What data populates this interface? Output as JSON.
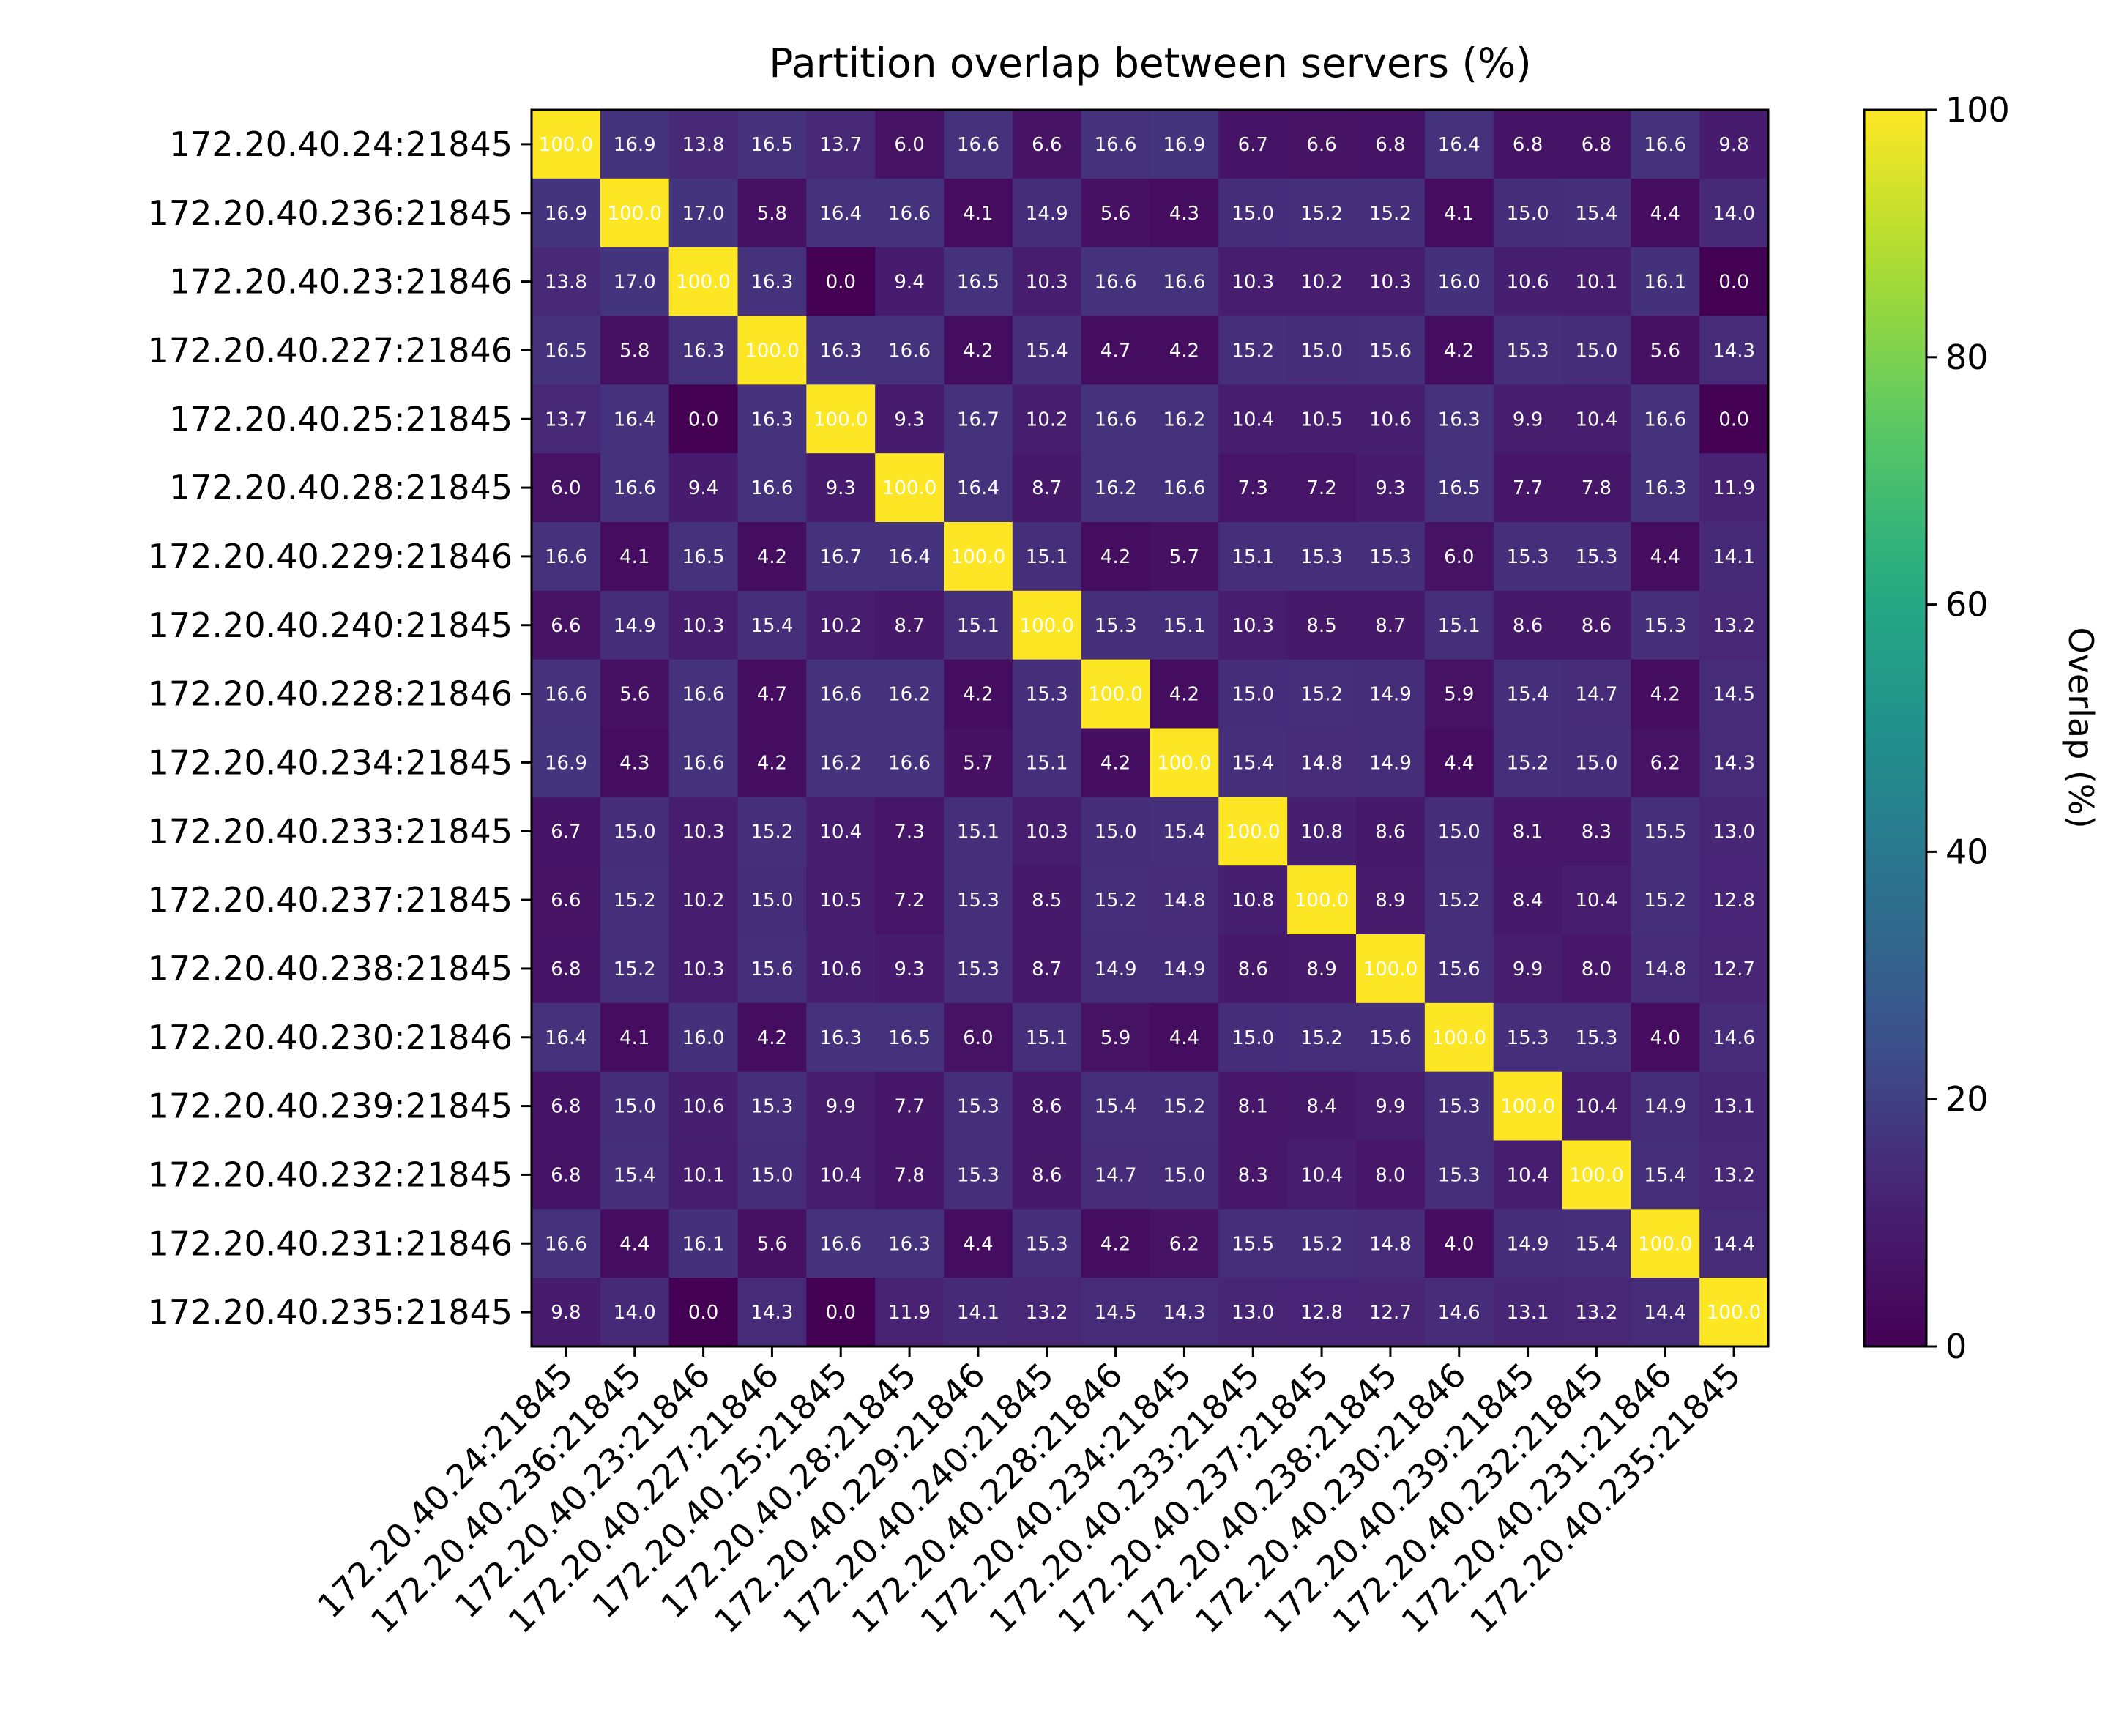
{
  "chart_data": {
    "type": "heatmap",
    "title": "Partition overlap between servers (%)",
    "xlabel": "",
    "ylabel": "",
    "categories": [
      "172.20.40.24:21845",
      "172.20.40.236:21845",
      "172.20.40.23:21846",
      "172.20.40.227:21846",
      "172.20.40.25:21845",
      "172.20.40.28:21845",
      "172.20.40.229:21846",
      "172.20.40.240:21845",
      "172.20.40.228:21846",
      "172.20.40.234:21845",
      "172.20.40.233:21845",
      "172.20.40.237:21845",
      "172.20.40.238:21845",
      "172.20.40.230:21846",
      "172.20.40.239:21845",
      "172.20.40.232:21845",
      "172.20.40.231:21846",
      "172.20.40.235:21845"
    ],
    "values": [
      [
        100.0,
        16.9,
        13.8,
        16.5,
        13.7,
        6.0,
        16.6,
        6.6,
        16.6,
        16.9,
        6.7,
        6.6,
        6.8,
        16.4,
        6.8,
        6.8,
        16.6,
        9.8
      ],
      [
        16.9,
        100.0,
        17.0,
        5.8,
        16.4,
        16.6,
        4.1,
        14.9,
        5.6,
        4.3,
        15.0,
        15.2,
        15.2,
        4.1,
        15.0,
        15.4,
        4.4,
        14.0
      ],
      [
        13.8,
        17.0,
        100.0,
        16.3,
        0.0,
        9.4,
        16.5,
        10.3,
        16.6,
        16.6,
        10.3,
        10.2,
        10.3,
        16.0,
        10.6,
        10.1,
        16.1,
        0.0
      ],
      [
        16.5,
        5.8,
        16.3,
        100.0,
        16.3,
        16.6,
        4.2,
        15.4,
        4.7,
        4.2,
        15.2,
        15.0,
        15.6,
        4.2,
        15.3,
        15.0,
        5.6,
        14.3
      ],
      [
        13.7,
        16.4,
        0.0,
        16.3,
        100.0,
        9.3,
        16.7,
        10.2,
        16.6,
        16.2,
        10.4,
        10.5,
        10.6,
        16.3,
        9.9,
        10.4,
        16.6,
        0.0
      ],
      [
        6.0,
        16.6,
        9.4,
        16.6,
        9.3,
        100.0,
        16.4,
        8.7,
        16.2,
        16.6,
        7.3,
        7.2,
        9.3,
        16.5,
        7.7,
        7.8,
        16.3,
        11.9
      ],
      [
        16.6,
        4.1,
        16.5,
        4.2,
        16.7,
        16.4,
        100.0,
        15.1,
        4.2,
        5.7,
        15.1,
        15.3,
        15.3,
        6.0,
        15.3,
        15.3,
        4.4,
        14.1
      ],
      [
        6.6,
        14.9,
        10.3,
        15.4,
        10.2,
        8.7,
        15.1,
        100.0,
        15.3,
        15.1,
        10.3,
        8.5,
        8.7,
        15.1,
        8.6,
        8.6,
        15.3,
        13.2
      ],
      [
        16.6,
        5.6,
        16.6,
        4.7,
        16.6,
        16.2,
        4.2,
        15.3,
        100.0,
        4.2,
        15.0,
        15.2,
        14.9,
        5.9,
        15.4,
        14.7,
        4.2,
        14.5
      ],
      [
        16.9,
        4.3,
        16.6,
        4.2,
        16.2,
        16.6,
        5.7,
        15.1,
        4.2,
        100.0,
        15.4,
        14.8,
        14.9,
        4.4,
        15.2,
        15.0,
        6.2,
        14.3
      ],
      [
        6.7,
        15.0,
        10.3,
        15.2,
        10.4,
        7.3,
        15.1,
        10.3,
        15.0,
        15.4,
        100.0,
        10.8,
        8.6,
        15.0,
        8.1,
        8.3,
        15.5,
        13.0
      ],
      [
        6.6,
        15.2,
        10.2,
        15.0,
        10.5,
        7.2,
        15.3,
        8.5,
        15.2,
        14.8,
        10.8,
        100.0,
        8.9,
        15.2,
        8.4,
        10.4,
        15.2,
        12.8
      ],
      [
        6.8,
        15.2,
        10.3,
        15.6,
        10.6,
        9.3,
        15.3,
        8.7,
        14.9,
        14.9,
        8.6,
        8.9,
        100.0,
        15.6,
        9.9,
        8.0,
        14.8,
        12.7
      ],
      [
        16.4,
        4.1,
        16.0,
        4.2,
        16.3,
        16.5,
        6.0,
        15.1,
        5.9,
        4.4,
        15.0,
        15.2,
        15.6,
        100.0,
        15.3,
        15.3,
        4.0,
        14.6
      ],
      [
        6.8,
        15.0,
        10.6,
        15.3,
        9.9,
        7.7,
        15.3,
        8.6,
        15.4,
        15.2,
        8.1,
        8.4,
        9.9,
        15.3,
        100.0,
        10.4,
        14.9,
        13.1
      ],
      [
        6.8,
        15.4,
        10.1,
        15.0,
        10.4,
        7.8,
        15.3,
        8.6,
        14.7,
        15.0,
        8.3,
        10.4,
        8.0,
        15.3,
        10.4,
        100.0,
        15.4,
        13.2
      ],
      [
        16.6,
        4.4,
        16.1,
        5.6,
        16.6,
        16.3,
        4.4,
        15.3,
        4.2,
        6.2,
        15.5,
        15.2,
        14.8,
        4.0,
        14.9,
        15.4,
        100.0,
        14.4
      ],
      [
        9.8,
        14.0,
        0.0,
        14.3,
        0.0,
        11.9,
        14.1,
        13.2,
        14.5,
        14.3,
        13.0,
        12.8,
        12.7,
        14.6,
        13.1,
        13.2,
        14.4,
        100.0
      ]
    ],
    "value_format": "0.1",
    "colormap": "viridis",
    "vmin": 0,
    "vmax": 100,
    "colorbar": {
      "label": "Overlap (%)",
      "ticks": [
        0,
        20,
        40,
        60,
        80,
        100
      ]
    },
    "grid": false,
    "label_color": "#ffffff"
  }
}
